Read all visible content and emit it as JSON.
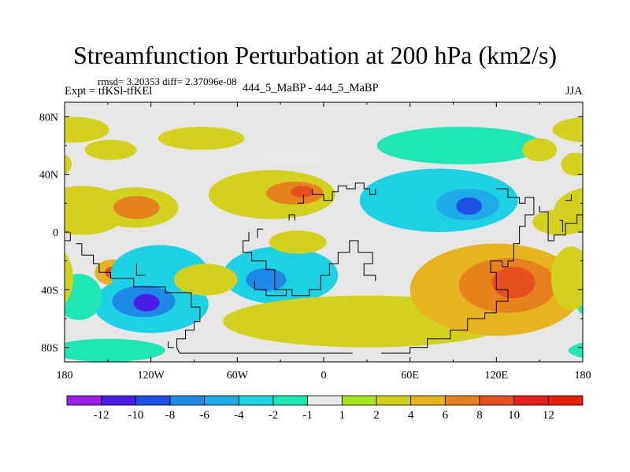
{
  "title": "Streamfunction Perturbation at 200 hPa (km2/s)",
  "stats": "rmsd= 3.20353  diff= 2.37096e-08",
  "left_label": "Expt = tfKSl-tfKEl",
  "center_label": "444_5_MaBP - 444_5_MaBP",
  "right_label": "JJA",
  "map": {
    "lon_range": [
      -180,
      180
    ],
    "lat_range": [
      -90,
      90
    ],
    "lon_ticks": [
      {
        "value": -180,
        "label": "180"
      },
      {
        "value": -120,
        "label": "120W"
      },
      {
        "value": -60,
        "label": "60W"
      },
      {
        "value": 0,
        "label": "0"
      },
      {
        "value": 60,
        "label": "60E"
      },
      {
        "value": 120,
        "label": "120E"
      },
      {
        "value": 180,
        "label": "180"
      }
    ],
    "lat_ticks": [
      {
        "value": 80,
        "label": "80N"
      },
      {
        "value": 40,
        "label": "40N"
      },
      {
        "value": 0,
        "label": "0"
      },
      {
        "value": -40,
        "label": "40S"
      },
      {
        "value": -80,
        "label": "80S"
      }
    ],
    "background_color": "#e6e6e6",
    "coast_color": "#000000",
    "features": [
      {
        "lon": -175,
        "lat": 71,
        "rx": 26,
        "ry": 9,
        "value": 2
      },
      {
        "lon": -148,
        "lat": 57,
        "rx": 18,
        "ry": 7,
        "value": 2.5
      },
      {
        "lon": -85,
        "lat": 65,
        "rx": 30,
        "ry": 8,
        "value": 2
      },
      {
        "lon": -168,
        "lat": 15,
        "rx": 32,
        "ry": 17,
        "value": 2
      },
      {
        "lon": -131,
        "lat": 17,
        "rx": 30,
        "ry": 14,
        "value": 3.5
      },
      {
        "lon": -130,
        "lat": 17,
        "rx": 16,
        "ry": 8,
        "value": 6
      },
      {
        "lon": -36,
        "lat": 26,
        "rx": 44,
        "ry": 17,
        "value": 3
      },
      {
        "lon": -20,
        "lat": 27,
        "rx": 20,
        "ry": 8,
        "value": 6
      },
      {
        "lon": -15,
        "lat": 28,
        "rx": 8,
        "ry": 4,
        "value": 8
      },
      {
        "lon": 95,
        "lat": 60,
        "rx": 58,
        "ry": 13,
        "value": -1.5
      },
      {
        "lon": 150,
        "lat": 57,
        "rx": 12,
        "ry": 8,
        "value": 2
      },
      {
        "lon": 175,
        "lat": 47,
        "rx": 10,
        "ry": 8,
        "value": 2
      },
      {
        "lon": 80,
        "lat": 22,
        "rx": 55,
        "ry": 22,
        "value": -3
      },
      {
        "lon": 100,
        "lat": 19,
        "rx": 22,
        "ry": 11,
        "value": -6
      },
      {
        "lon": 101,
        "lat": 18,
        "rx": 9,
        "ry": 6,
        "value": -9
      },
      {
        "lon": 165,
        "lat": 7,
        "rx": 20,
        "ry": 9,
        "value": 2
      },
      {
        "lon": -147,
        "lat": -28,
        "rx": 12,
        "ry": 9,
        "value": 5
      },
      {
        "lon": -147,
        "lat": -28,
        "rx": 5,
        "ry": 4,
        "value": 8
      },
      {
        "lon": -114,
        "lat": -29,
        "rx": 34,
        "ry": 20,
        "value": -3
      },
      {
        "lon": -120,
        "lat": -50,
        "rx": 40,
        "ry": 20,
        "value": -3.5
      },
      {
        "lon": -125,
        "lat": -48,
        "rx": 22,
        "ry": 11,
        "value": -7
      },
      {
        "lon": -123,
        "lat": -49,
        "rx": 9,
        "ry": 6,
        "value": -11
      },
      {
        "lon": -170,
        "lat": -45,
        "rx": 16,
        "ry": 16,
        "value": -2
      },
      {
        "lon": -30,
        "lat": -30,
        "rx": 40,
        "ry": 20,
        "value": -3
      },
      {
        "lon": -40,
        "lat": -33,
        "rx": 14,
        "ry": 8,
        "value": -7
      },
      {
        "lon": -18,
        "lat": -7,
        "rx": 20,
        "ry": 8,
        "value": 2.5
      },
      {
        "lon": -82,
        "lat": -33,
        "rx": 22,
        "ry": 11,
        "value": 2.5
      },
      {
        "lon": -150,
        "lat": -82,
        "rx": 40,
        "ry": 8,
        "value": -1.5
      },
      {
        "lon": 30,
        "lat": -62,
        "rx": 100,
        "ry": 18,
        "value": 3
      },
      {
        "lon": 120,
        "lat": -40,
        "rx": 60,
        "ry": 32,
        "value": 4
      },
      {
        "lon": 128,
        "lat": -37,
        "rx": 34,
        "ry": 19,
        "value": 6
      },
      {
        "lon": 132,
        "lat": -35,
        "rx": 15,
        "ry": 11,
        "value": 9
      },
      {
        "lon": 172,
        "lat": -32,
        "rx": 14,
        "ry": 22,
        "value": 2
      },
      {
        "lon": -20,
        "lat": 52,
        "rx": 25,
        "ry": 6,
        "value": 0.4
      }
    ]
  },
  "colorbar": {
    "labels": [
      "-12",
      "-10",
      "-8",
      "-6",
      "-4",
      "-2",
      "-1",
      "1",
      "2",
      "4",
      "6",
      "8",
      "10",
      "12"
    ],
    "colors": [
      "#9a1ee6",
      "#4a1ee6",
      "#1e50e6",
      "#1e8ae6",
      "#1eaae6",
      "#1ed2e6",
      "#1ee6b4",
      "#e8e8e8",
      "#a5e61e",
      "#d2d21e",
      "#e6b41e",
      "#e6821e",
      "#e6501e",
      "#e61e1e",
      "#e61e0a"
    ]
  }
}
